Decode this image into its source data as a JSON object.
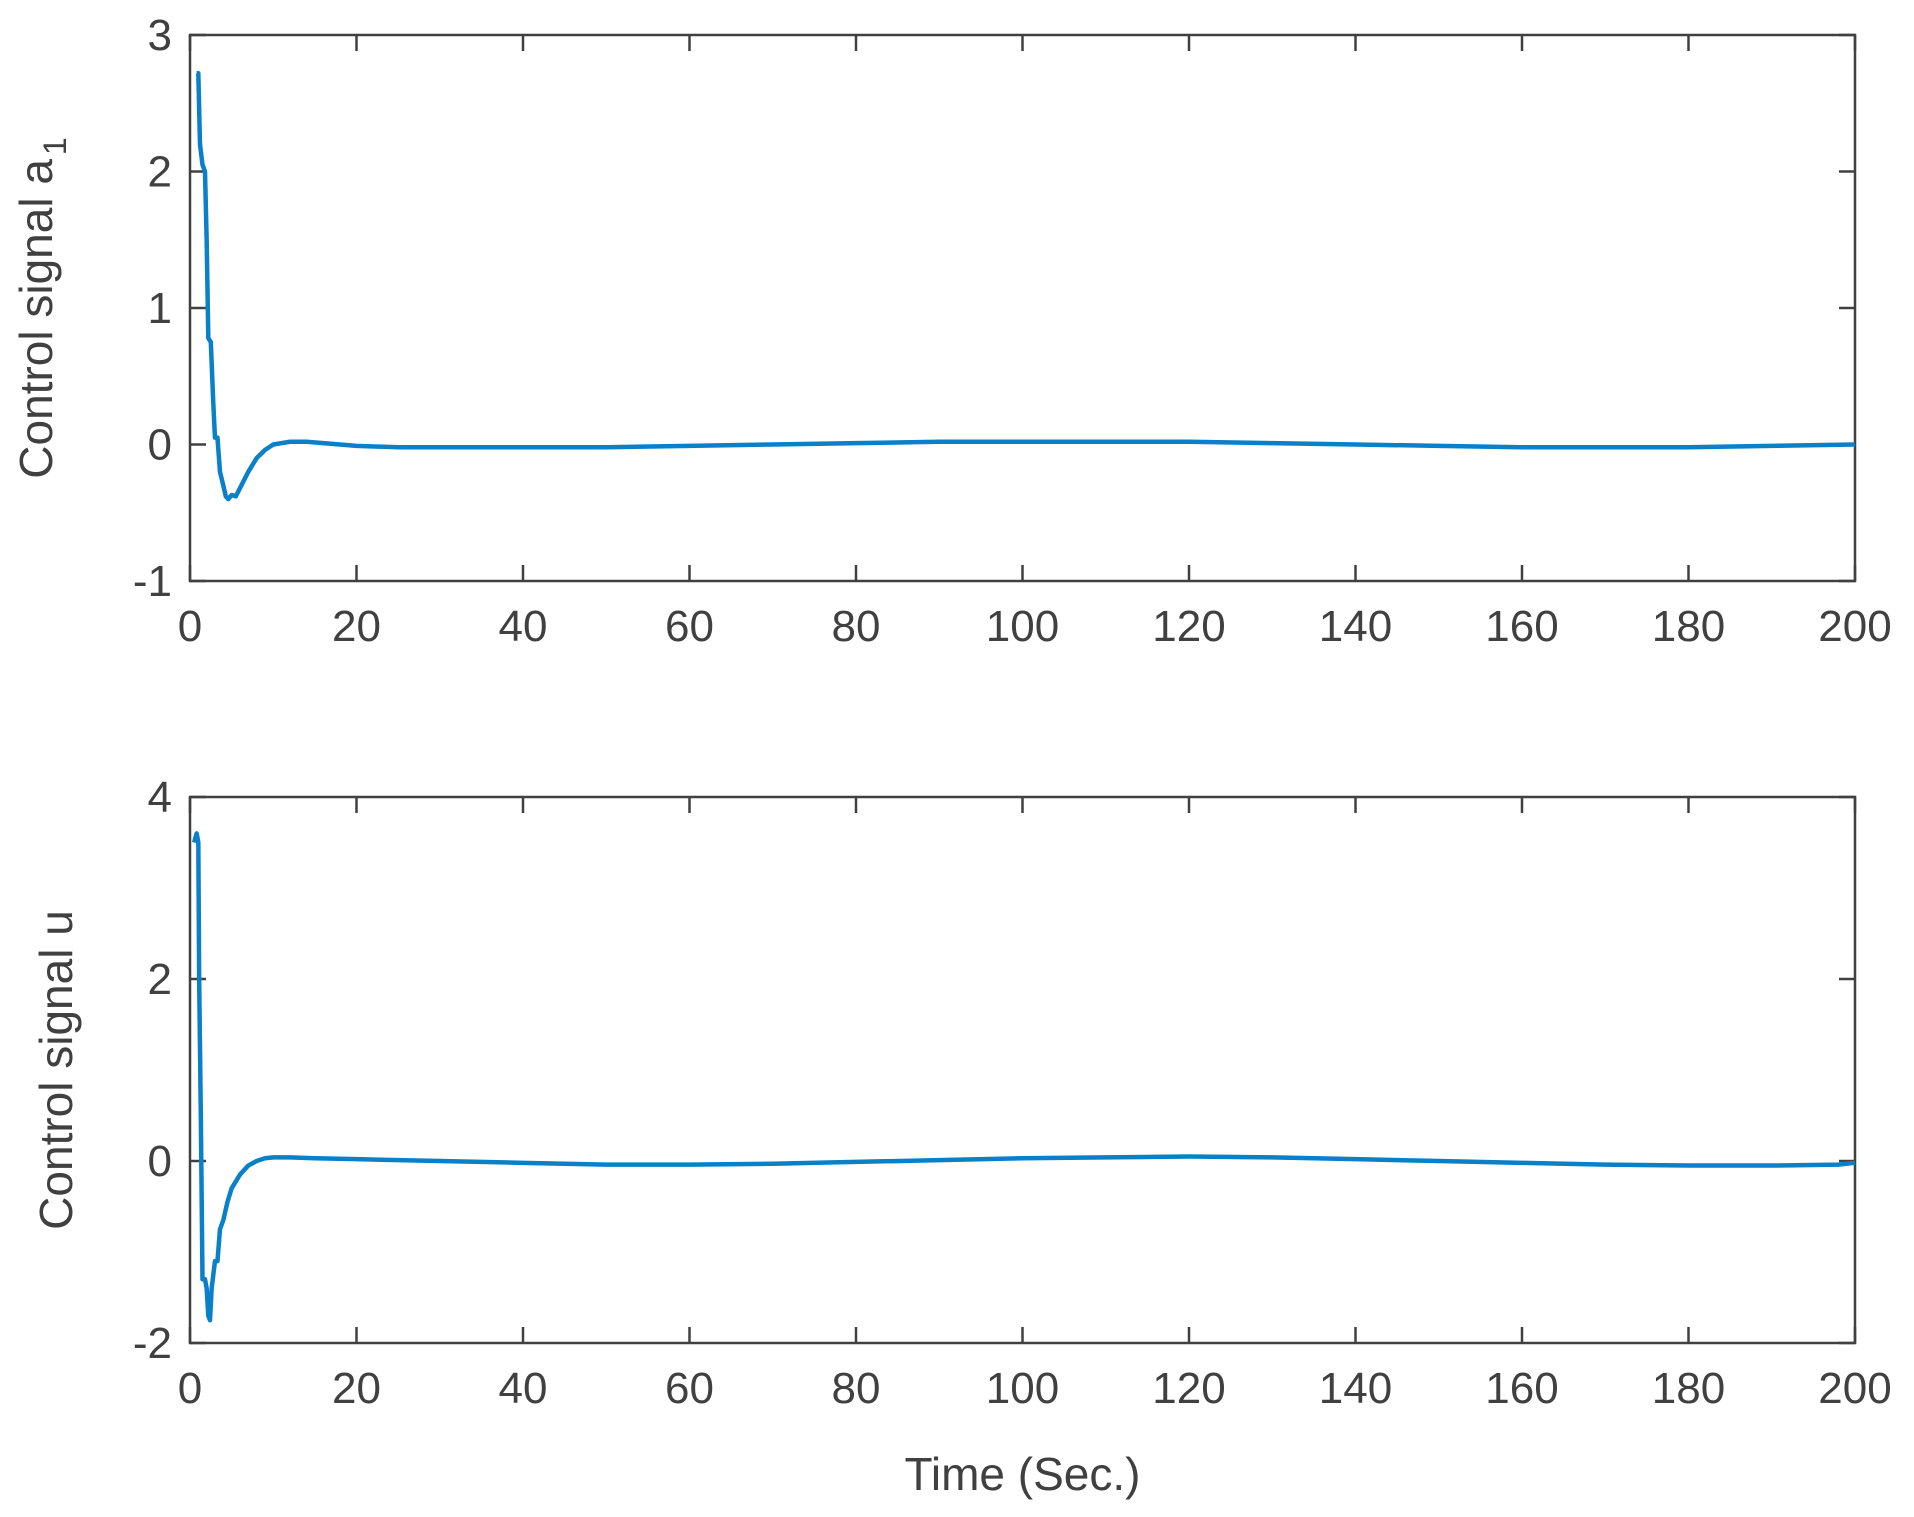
{
  "colors": {
    "line": "#0a80c8",
    "axes": "#404040",
    "background": "#ffffff"
  },
  "chart_data": [
    {
      "type": "line",
      "title": "",
      "xlabel": "",
      "ylabel": "Control signal a",
      "ylabel_subscript": "1",
      "xlim": [
        0,
        200
      ],
      "ylim": [
        -1,
        3
      ],
      "xticks": [
        0,
        20,
        40,
        60,
        80,
        100,
        120,
        140,
        160,
        180,
        200
      ],
      "yticks": [
        -1,
        0,
        1,
        2,
        3
      ],
      "xtick_labels": [
        "0",
        "20",
        "40",
        "60",
        "80",
        "100",
        "120",
        "140",
        "160",
        "180",
        "200"
      ],
      "ytick_labels": [
        "-1",
        "0",
        "1",
        "2",
        "3"
      ],
      "grid": false,
      "series": [
        {
          "x": [
            0.8,
            1.0,
            1.2,
            1.5,
            1.8,
            2.0,
            2.2,
            2.5,
            2.8,
            3.0,
            3.3,
            3.6,
            4.0,
            4.3,
            4.6,
            5.0,
            5.5,
            6,
            7,
            8,
            9,
            10,
            12,
            14,
            16,
            20,
            25,
            30,
            40,
            50,
            60,
            70,
            80,
            90,
            95,
            100,
            110,
            120,
            130,
            140,
            150,
            160,
            170,
            180,
            190,
            200
          ],
          "y": [
            2.72,
            2.72,
            2.2,
            2.05,
            2.0,
            1.5,
            0.78,
            0.75,
            0.3,
            0.05,
            0.05,
            -0.2,
            -0.3,
            -0.38,
            -0.4,
            -0.37,
            -0.38,
            -0.32,
            -0.2,
            -0.1,
            -0.04,
            0.0,
            0.02,
            0.02,
            0.01,
            -0.01,
            -0.02,
            -0.02,
            -0.02,
            -0.02,
            -0.01,
            0.0,
            0.01,
            0.02,
            0.02,
            0.02,
            0.02,
            0.02,
            0.01,
            0.0,
            -0.01,
            -0.02,
            -0.02,
            -0.02,
            -0.01,
            0.0
          ]
        }
      ]
    },
    {
      "type": "line",
      "title": "",
      "xlabel": "Time (Sec.)",
      "ylabel": "Control signal u",
      "xlim": [
        0,
        200
      ],
      "ylim": [
        -2,
        4
      ],
      "xticks": [
        0,
        20,
        40,
        60,
        80,
        100,
        120,
        140,
        160,
        180,
        200
      ],
      "yticks": [
        -2,
        0,
        2,
        4
      ],
      "xtick_labels": [
        "0",
        "20",
        "40",
        "60",
        "80",
        "100",
        "120",
        "140",
        "160",
        "180",
        "200"
      ],
      "ytick_labels": [
        "-2",
        "0",
        "2",
        "4"
      ],
      "grid": false,
      "series": [
        {
          "x": [
            0.5,
            0.8,
            1.0,
            1.1,
            1.3,
            1.5,
            1.8,
            2.0,
            2.2,
            2.4,
            2.6,
            3.0,
            3.3,
            3.6,
            4.0,
            4.5,
            5.0,
            6,
            7,
            8,
            9,
            10,
            12,
            15,
            20,
            30,
            40,
            50,
            60,
            70,
            80,
            90,
            100,
            110,
            120,
            130,
            140,
            150,
            160,
            170,
            180,
            190,
            198,
            200
          ],
          "y": [
            3.5,
            3.6,
            3.5,
            2.0,
            0.5,
            -1.3,
            -1.3,
            -1.4,
            -1.7,
            -1.75,
            -1.4,
            -1.1,
            -1.1,
            -0.75,
            -0.65,
            -0.45,
            -0.3,
            -0.15,
            -0.05,
            0.0,
            0.03,
            0.04,
            0.04,
            0.03,
            0.02,
            0.0,
            -0.02,
            -0.04,
            -0.04,
            -0.03,
            -0.01,
            0.01,
            0.03,
            0.04,
            0.05,
            0.04,
            0.02,
            0.0,
            -0.02,
            -0.04,
            -0.05,
            -0.05,
            -0.04,
            -0.02
          ]
        }
      ]
    }
  ]
}
